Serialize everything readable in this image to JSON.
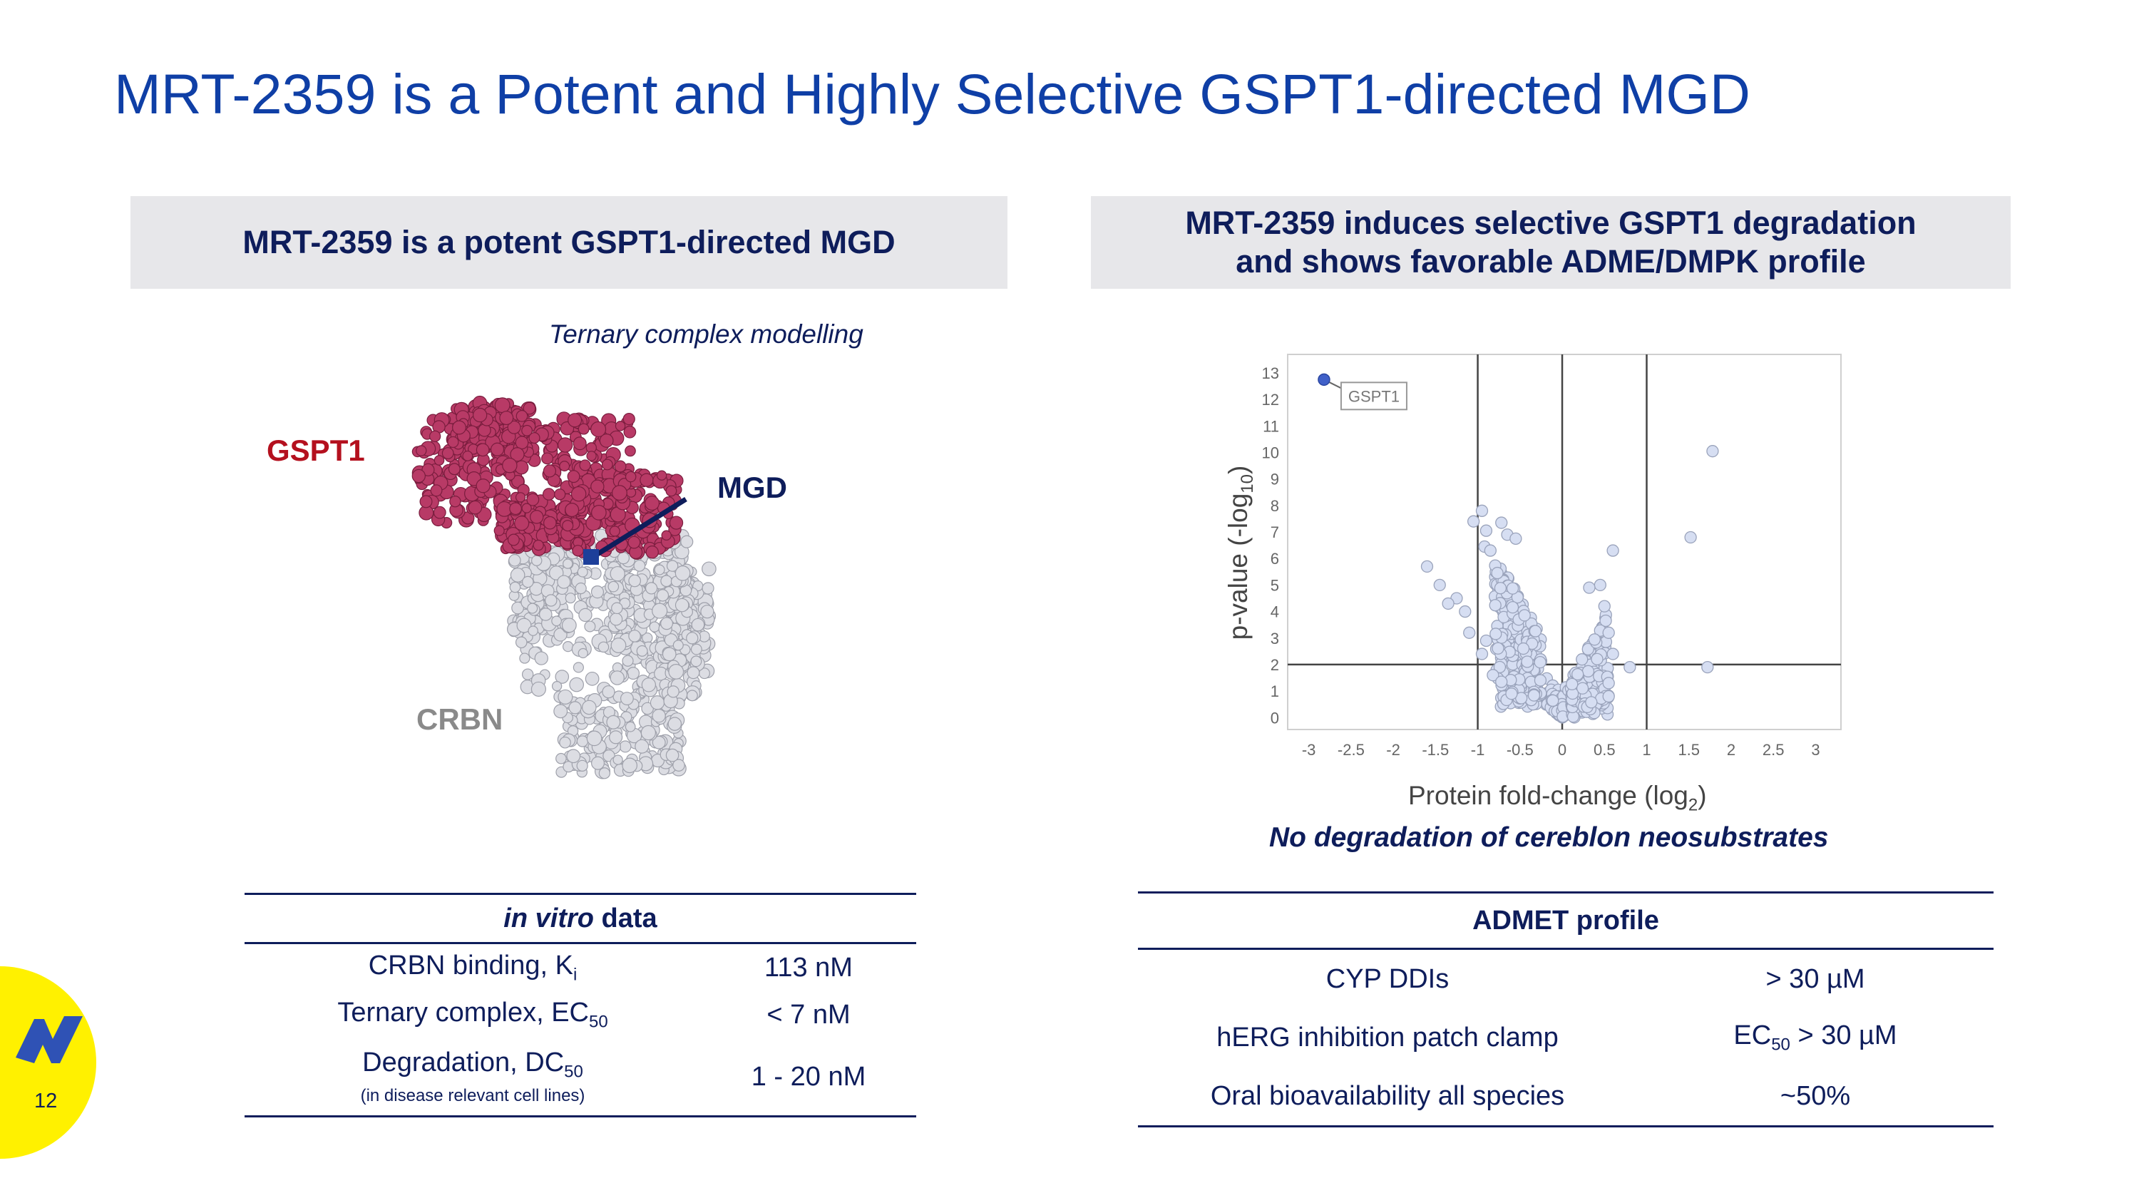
{
  "slide": {
    "title": "MRT-2359 is a Potent and Highly Selective GSPT1-directed MGD",
    "page_number": "12"
  },
  "left_panel": {
    "header": "MRT-2359 is a potent GSPT1-directed MGD",
    "caption": "Ternary complex modelling",
    "labels": {
      "gspt1": "GSPT1",
      "mgd": "MGD",
      "crbn": "CRBN"
    },
    "colors": {
      "gspt1": "#b83a66",
      "crbn": "#dcdde3",
      "mgd": "#1d3f9a"
    }
  },
  "in_vitro_table": {
    "header_italic": "in vitro",
    "header_rest": " data",
    "rows": [
      {
        "label": "CRBN binding, K",
        "sub": "i",
        "value": "113 nM"
      },
      {
        "label": "Ternary complex, EC",
        "sub": "50",
        "value": "< 7 nM"
      },
      {
        "label": "Degradation, DC",
        "sub": "50",
        "note": "(in disease relevant cell lines)",
        "value": "1 - 20 nM"
      }
    ]
  },
  "right_panel": {
    "header_line1": "MRT-2359 induces selective GSPT1 degradation",
    "header_line2": "and shows favorable ADME/DMPK profile",
    "footnote": "No degradation of cereblon neosubstrates",
    "x_label_main": "Protein fold-change (log",
    "x_label_sub": "2",
    "x_label_end": ")",
    "y_label_main": "p-value (-log",
    "y_label_sub": "10",
    "y_label_end": ")"
  },
  "chart_data": {
    "type": "scatter",
    "title": "",
    "xlabel": "Protein fold-change (log2)",
    "ylabel": "p-value (-log10)",
    "xlim": [
      -3.25,
      3.3
    ],
    "ylim": [
      -0.45,
      13.7
    ],
    "x_ticks": [
      "-3",
      "-2.5",
      "-2",
      "-1.5",
      "-1",
      "-0.5",
      "0",
      "0.5",
      "1",
      "1.5",
      "2",
      "2.5",
      "3"
    ],
    "y_ticks": [
      "0",
      "1",
      "2",
      "3",
      "4",
      "5",
      "6",
      "7",
      "8",
      "9",
      "10",
      "11",
      "12",
      "13"
    ],
    "threshold_lines": {
      "x": [
        -1,
        0,
        1
      ],
      "y": [
        2
      ]
    },
    "highlight": {
      "label": "GSPT1",
      "x": -2.82,
      "y": 12.75,
      "color": "#4060c8"
    },
    "point_color": "#d6def2",
    "outliers": [
      {
        "x": -1.6,
        "y": 5.7
      },
      {
        "x": -1.45,
        "y": 5.0
      },
      {
        "x": -1.25,
        "y": 4.5
      },
      {
        "x": -1.35,
        "y": 4.3
      },
      {
        "x": -1.15,
        "y": 4.0
      },
      {
        "x": -1.1,
        "y": 3.2
      },
      {
        "x": -1.05,
        "y": 7.4
      },
      {
        "x": -0.95,
        "y": 7.8
      },
      {
        "x": -0.9,
        "y": 7.05
      },
      {
        "x": -0.92,
        "y": 6.45
      },
      {
        "x": -0.85,
        "y": 6.3
      },
      {
        "x": -0.72,
        "y": 7.35
      },
      {
        "x": -0.65,
        "y": 6.9
      },
      {
        "x": -0.55,
        "y": 6.75
      },
      {
        "x": -0.9,
        "y": 2.9
      },
      {
        "x": -0.95,
        "y": 2.4
      },
      {
        "x": -0.82,
        "y": 1.6
      },
      {
        "x": -0.72,
        "y": 1.35
      },
      {
        "x": -0.6,
        "y": 0.9
      },
      {
        "x": 0.6,
        "y": 6.3
      },
      {
        "x": 0.45,
        "y": 5.0
      },
      {
        "x": 0.32,
        "y": 4.9
      },
      {
        "x": 0.55,
        "y": 3.2
      },
      {
        "x": 0.5,
        "y": 4.2
      },
      {
        "x": 0.8,
        "y": 1.9
      },
      {
        "x": 0.55,
        "y": 1.3
      },
      {
        "x": 0.55,
        "y": 0.8
      },
      {
        "x": 0.6,
        "y": 2.4
      },
      {
        "x": 1.52,
        "y": 6.8
      },
      {
        "x": 1.78,
        "y": 10.05
      },
      {
        "x": 1.72,
        "y": 1.9
      }
    ]
  },
  "admet_table": {
    "header": "ADMET profile",
    "rows": [
      {
        "label": "CYP DDIs",
        "value": "> 30 µM"
      },
      {
        "label": "hERG inhibition patch clamp",
        "value_prefix": "EC",
        "value_sub": "50",
        "value": " > 30 µM"
      },
      {
        "label": "Oral bioavailability all species",
        "value": "~50%"
      }
    ]
  },
  "logo": {
    "circle_color": "#fff100",
    "mark_color": "#2f52b5",
    "icon": "company-logo-mark"
  }
}
